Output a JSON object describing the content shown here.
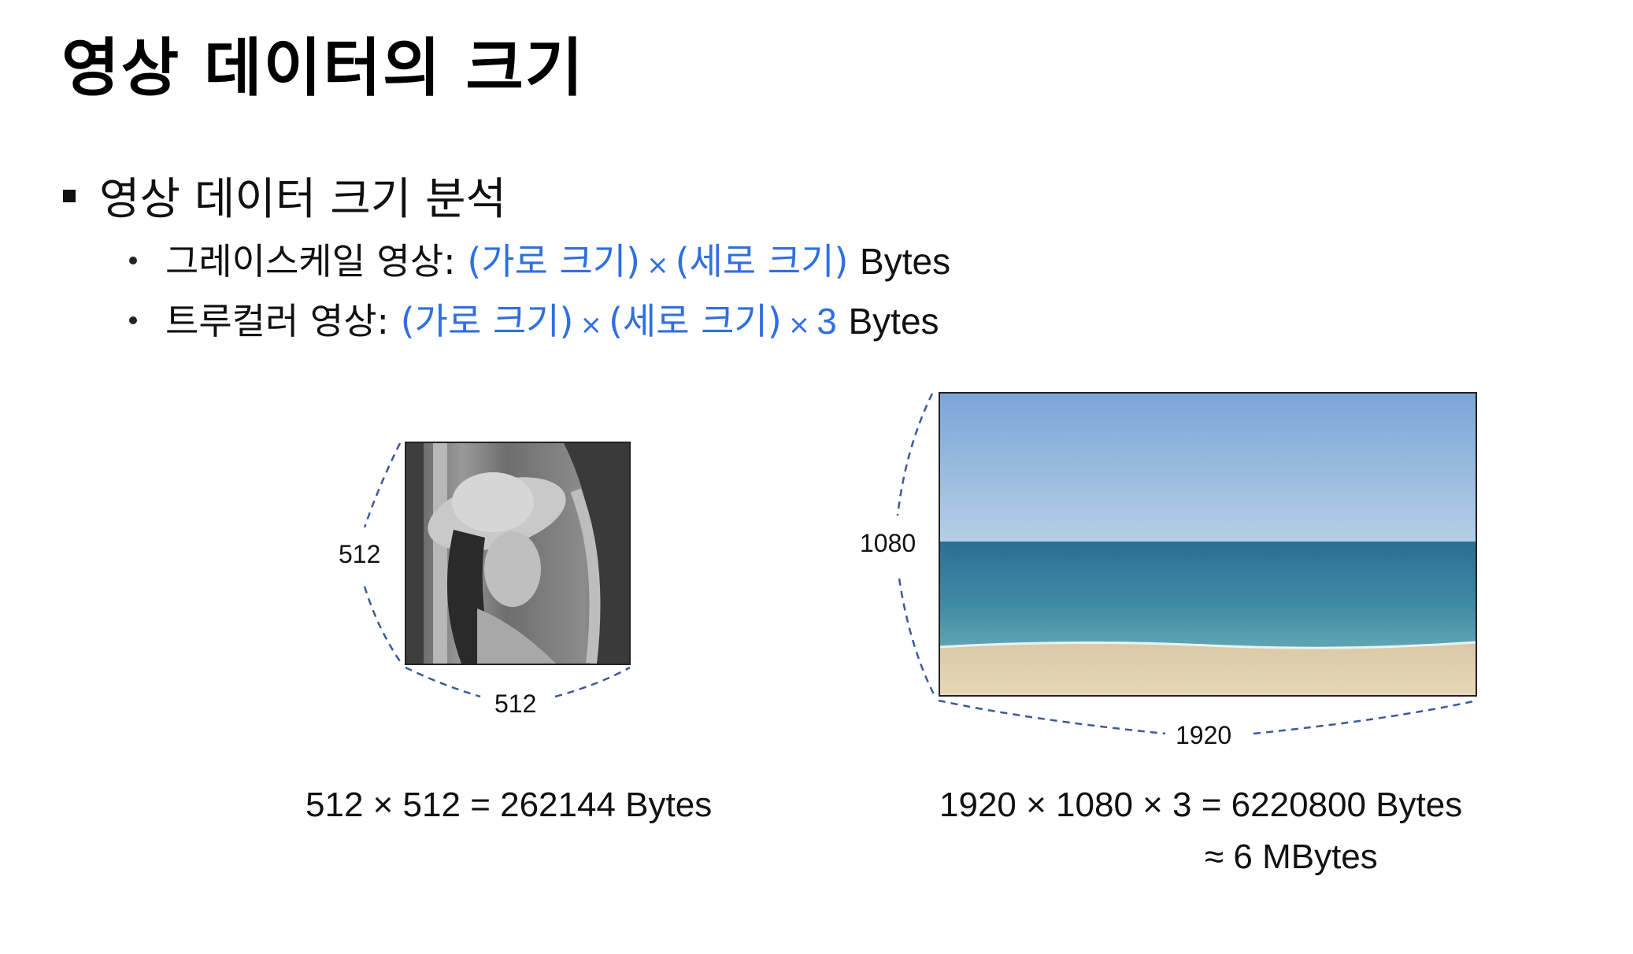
{
  "title": "영상 데이터의 크기",
  "section": "영상 데이터 크기 분석",
  "grayscale": {
    "label": "그레이스케일 영상:",
    "width_term": "(가로 크기)",
    "height_term": "(세로 크기)",
    "unit": "Bytes"
  },
  "truecolor": {
    "label": "트루컬러 영상:",
    "width_term": "(가로 크기)",
    "height_term": "(세로 크기)",
    "channels": "3",
    "unit": "Bytes"
  },
  "times_symbol": "×",
  "gray_image": {
    "height_label": "512",
    "width_label": "512",
    "formula": "512 × 512 = 262144 Bytes"
  },
  "color_image": {
    "height_label": "1080",
    "width_label": "1920",
    "formula": "1920 × 1080 × 3 = 6220800 Bytes",
    "approx": "≈ 6 MBytes"
  },
  "colors": {
    "accent": "#2f6fe0",
    "dashed_line": "#3b5a9a"
  }
}
